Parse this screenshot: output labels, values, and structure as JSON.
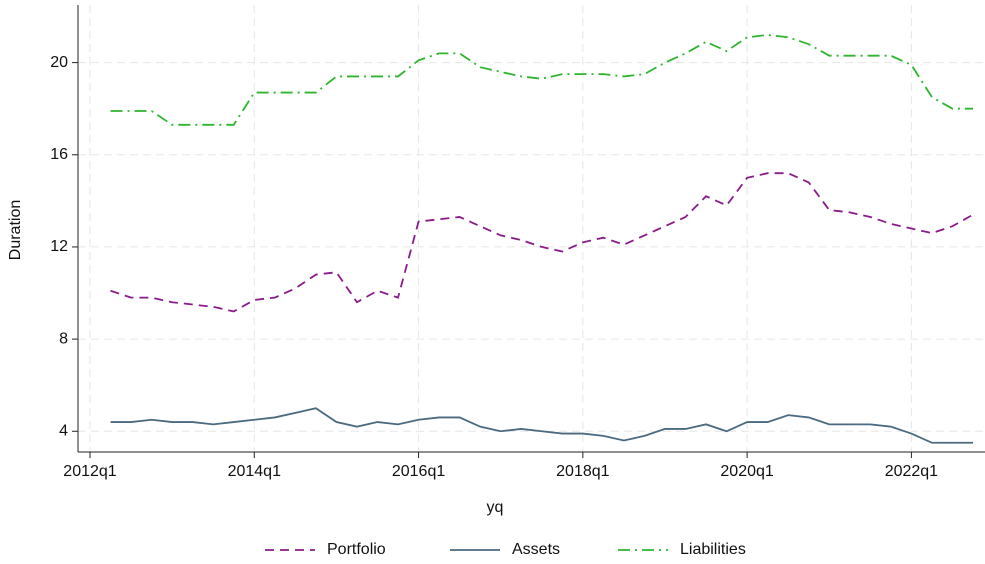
{
  "chart_data": {
    "type": "line",
    "x_label": "yq",
    "y_label": "Duration",
    "x": [
      "2012q2",
      "2012q3",
      "2012q4",
      "2013q1",
      "2013q2",
      "2013q3",
      "2013q4",
      "2014q1",
      "2014q2",
      "2014q3",
      "2014q4",
      "2015q1",
      "2015q2",
      "2015q3",
      "2015q4",
      "2016q1",
      "2016q2",
      "2016q3",
      "2016q4",
      "2017q1",
      "2017q2",
      "2017q3",
      "2017q4",
      "2018q1",
      "2018q2",
      "2018q3",
      "2018q4",
      "2019q1",
      "2019q2",
      "2019q3",
      "2019q4",
      "2020q1",
      "2020q2",
      "2020q3",
      "2020q4",
      "2021q1",
      "2021q2",
      "2021q3",
      "2021q4",
      "2022q1",
      "2022q2",
      "2022q3",
      "2022q4"
    ],
    "series": [
      {
        "name": "Portfolio",
        "color": "#8b1a8b",
        "dash": "dashed",
        "values": [
          10.1,
          9.8,
          9.8,
          9.6,
          9.5,
          9.4,
          9.2,
          9.7,
          9.8,
          10.2,
          10.8,
          10.9,
          9.6,
          10.1,
          9.8,
          13.1,
          13.2,
          13.3,
          12.9,
          12.5,
          12.3,
          12.0,
          11.8,
          12.2,
          12.4,
          12.1,
          12.5,
          12.9,
          13.3,
          14.2,
          13.8,
          15.0,
          15.2,
          15.2,
          14.8,
          13.6,
          13.5,
          13.3,
          13.0,
          12.8,
          12.6,
          12.9,
          13.4
        ]
      },
      {
        "name": "Assets",
        "color": "#4a6a80",
        "dash": "solid",
        "values": [
          4.4,
          4.4,
          4.5,
          4.4,
          4.4,
          4.3,
          4.4,
          4.5,
          4.6,
          4.8,
          5.0,
          4.4,
          4.2,
          4.4,
          4.3,
          4.5,
          4.6,
          4.6,
          4.2,
          4.0,
          4.1,
          4.0,
          3.9,
          3.9,
          3.8,
          3.6,
          3.8,
          4.1,
          4.1,
          4.3,
          4.0,
          4.4,
          4.4,
          4.7,
          4.6,
          4.3,
          4.3,
          4.3,
          4.2,
          3.9,
          3.5,
          3.5,
          3.5
        ]
      },
      {
        "name": "Liabilities",
        "color": "#2db52d",
        "dash": "dashdot",
        "values": [
          17.9,
          17.9,
          17.9,
          17.3,
          17.3,
          17.3,
          17.3,
          18.7,
          18.7,
          18.7,
          18.7,
          19.4,
          19.4,
          19.4,
          19.4,
          20.1,
          20.4,
          20.4,
          19.8,
          19.6,
          19.4,
          19.3,
          19.5,
          19.5,
          19.5,
          19.4,
          19.5,
          20.0,
          20.4,
          20.9,
          20.5,
          21.1,
          21.2,
          21.1,
          20.8,
          20.3,
          20.3,
          20.3,
          20.3,
          19.9,
          18.5,
          18.0,
          18.0
        ]
      }
    ],
    "xlim": [
      "2012q1",
      "2022q4"
    ],
    "xticks": [
      "2012q1",
      "2014q1",
      "2016q1",
      "2018q1",
      "2020q1",
      "2022q1"
    ],
    "ylim": [
      3.1,
      22.5
    ],
    "yticks": [
      4,
      8,
      12,
      16,
      20
    ],
    "grid": true,
    "legend": "bottom"
  }
}
